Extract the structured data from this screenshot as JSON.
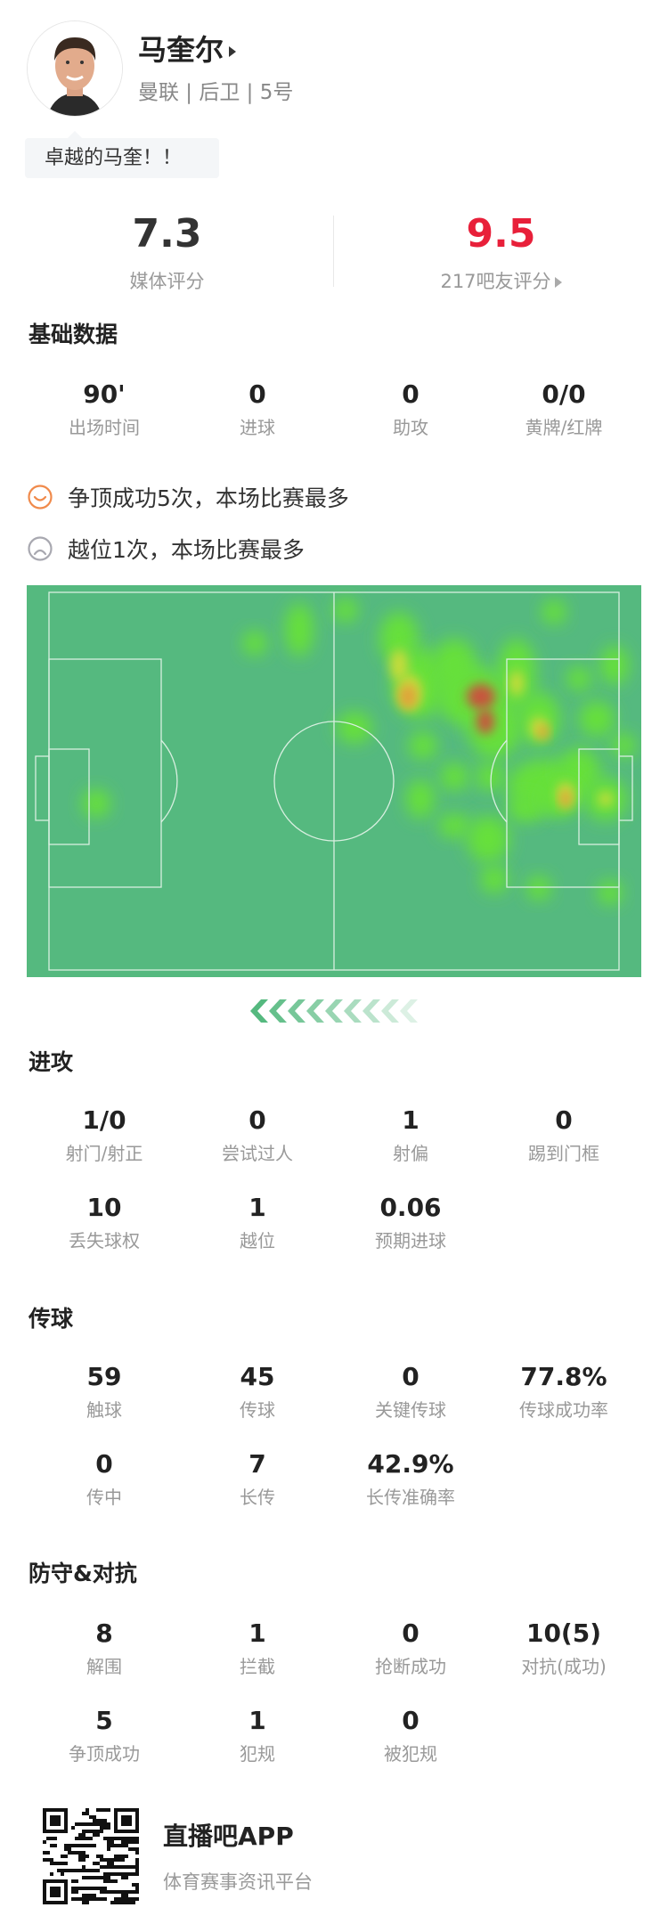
{
  "player": {
    "name": "马奎尔",
    "subtitle": "曼联 | 后卫 | 5号",
    "comment": "卓越的马奎！！"
  },
  "ratings": {
    "media_value": "7.3",
    "media_label": "媒体评分",
    "fan_value": "9.5",
    "fan_label": "217吧友评分",
    "fan_color": "#e8203a"
  },
  "basic": {
    "title": "基础数据",
    "rows": [
      [
        {
          "value": "90'",
          "label": "出场时间"
        },
        {
          "value": "0",
          "label": "进球"
        },
        {
          "value": "0",
          "label": "助攻"
        },
        {
          "value": "0/0",
          "label": "黄牌/红牌"
        }
      ]
    ]
  },
  "highlights": [
    {
      "icon": "smile-icon",
      "text": "争顶成功5次，本场比赛最多",
      "color": "#f08a4b"
    },
    {
      "icon": "frown-icon",
      "text": "越位1次，本场比赛最多",
      "color": "#a8a8b0"
    }
  ],
  "heatmap": {
    "pitch_color": "#55b97f"
  },
  "attack": {
    "title": "进攻",
    "rows": [
      [
        {
          "value": "1/0",
          "label": "射门/射正"
        },
        {
          "value": "0",
          "label": "尝试过人"
        },
        {
          "value": "1",
          "label": "射偏"
        },
        {
          "value": "0",
          "label": "踢到门框"
        }
      ],
      [
        {
          "value": "10",
          "label": "丢失球权"
        },
        {
          "value": "1",
          "label": "越位"
        },
        {
          "value": "0.06",
          "label": "预期进球"
        }
      ]
    ]
  },
  "passing": {
    "title": "传球",
    "rows": [
      [
        {
          "value": "59",
          "label": "触球"
        },
        {
          "value": "45",
          "label": "传球"
        },
        {
          "value": "0",
          "label": "关键传球"
        },
        {
          "value": "77.8%",
          "label": "传球成功率"
        }
      ],
      [
        {
          "value": "0",
          "label": "传中"
        },
        {
          "value": "7",
          "label": "长传"
        },
        {
          "value": "42.9%",
          "label": "长传准确率"
        }
      ]
    ]
  },
  "defense": {
    "title": "防守&对抗",
    "rows": [
      [
        {
          "value": "8",
          "label": "解围"
        },
        {
          "value": "1",
          "label": "拦截"
        },
        {
          "value": "0",
          "label": "抢断成功"
        },
        {
          "value": "10(5)",
          "label": "对抗(成功)"
        }
      ],
      [
        {
          "value": "5",
          "label": "争顶成功"
        },
        {
          "value": "1",
          "label": "犯规"
        },
        {
          "value": "0",
          "label": "被犯规"
        }
      ]
    ]
  },
  "footer": {
    "app_name": "直播吧APP",
    "app_sub": "体育赛事资讯平台"
  }
}
